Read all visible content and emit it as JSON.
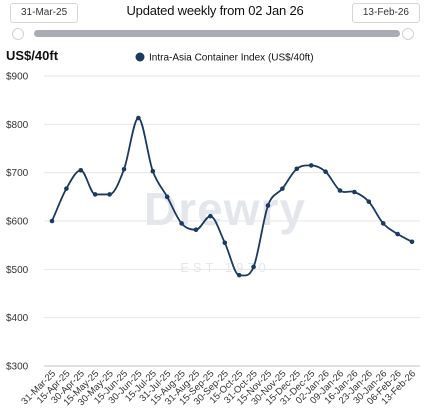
{
  "range": {
    "start_label": "31-Mar-25",
    "title": "Updated weekly from 02 Jan 26",
    "end_label": "13-Feb-26"
  },
  "watermark": {
    "brand": "Drewry",
    "est": "EST 1970"
  },
  "colors": {
    "series": "#1a3a5f",
    "grid": "#e6e6e6",
    "axis": "#bfbfbf",
    "slider_track": "#a9adb3"
  },
  "chart_data": {
    "type": "line",
    "ylabel": "US$/40ft",
    "ylim": [
      300,
      900
    ],
    "yticks": [
      300,
      400,
      500,
      600,
      700,
      800,
      900
    ],
    "ytick_labels": [
      "$300",
      "$400",
      "$500",
      "$600",
      "$700",
      "$800",
      "$900"
    ],
    "grid": "horizontal",
    "legend": "top-center",
    "categories": [
      "31-Mar-25",
      "15-Apr-25",
      "30-Apr-25",
      "15-May-25",
      "30-May-25",
      "15-Jun-25",
      "30-Jun-25",
      "15-Jul-25",
      "31-Jul-25",
      "15-Aug-25",
      "31-Aug-25",
      "15-Sep-25",
      "30-Sep-25",
      "15-Oct-25",
      "31-Oct-25",
      "15-Nov-25",
      "30-Nov-25",
      "15-Dec-25",
      "31-Dec-25",
      "02-Jan-26",
      "09-Jan-26",
      "16-Jan-26",
      "23-Jan-26",
      "30-Jan-26",
      "06-Feb-26",
      "13-Feb-26"
    ],
    "series": [
      {
        "name": "Intra-Asia Container Index (US$/40ft)",
        "values": [
          600,
          667,
          705,
          655,
          655,
          707,
          813,
          703,
          650,
          595,
          582,
          610,
          555,
          488,
          505,
          632,
          667,
          708,
          715,
          702,
          663,
          660,
          640,
          595,
          573,
          557
        ]
      }
    ]
  }
}
